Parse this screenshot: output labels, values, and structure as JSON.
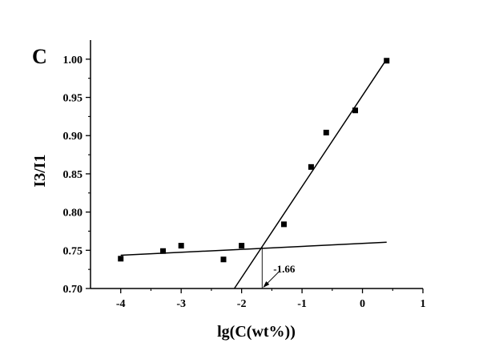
{
  "chart_data": {
    "type": "scatter",
    "panel_label": "C",
    "xlabel": "lg(C(wt%))",
    "ylabel": "I3/I1",
    "xlim": [
      -4.5,
      1.0
    ],
    "ylim": [
      0.7,
      1.025
    ],
    "x_ticks": [
      -4,
      -3,
      -2,
      -1,
      0,
      1
    ],
    "x_tick_labels": [
      "-4",
      "-3",
      "-2",
      "-1",
      "0",
      "1"
    ],
    "y_ticks": [
      0.7,
      0.75,
      0.8,
      0.85,
      0.9,
      0.95,
      1.0
    ],
    "y_tick_labels": [
      "0.70",
      "0.75",
      "0.80",
      "0.85",
      "0.90",
      "0.95",
      "1.00"
    ],
    "grid": false,
    "points": [
      {
        "x": -4.0,
        "y": 0.739
      },
      {
        "x": -3.3,
        "y": 0.749
      },
      {
        "x": -3.0,
        "y": 0.756
      },
      {
        "x": -2.3,
        "y": 0.738
      },
      {
        "x": -2.0,
        "y": 0.756
      },
      {
        "x": -1.3,
        "y": 0.784
      },
      {
        "x": -0.85,
        "y": 0.859
      },
      {
        "x": -0.6,
        "y": 0.904
      },
      {
        "x": -0.12,
        "y": 0.933
      },
      {
        "x": 0.4,
        "y": 0.998
      }
    ],
    "fit_lines": [
      {
        "x": [
          -4.0,
          0.4
        ],
        "y": [
          0.7435,
          0.7605
        ]
      },
      {
        "x": [
          -2.12,
          0.4
        ],
        "y": [
          0.7,
          1.0
        ]
      }
    ],
    "annotation": {
      "text": "-1.66",
      "x": -1.66,
      "y": 0.754
    }
  }
}
